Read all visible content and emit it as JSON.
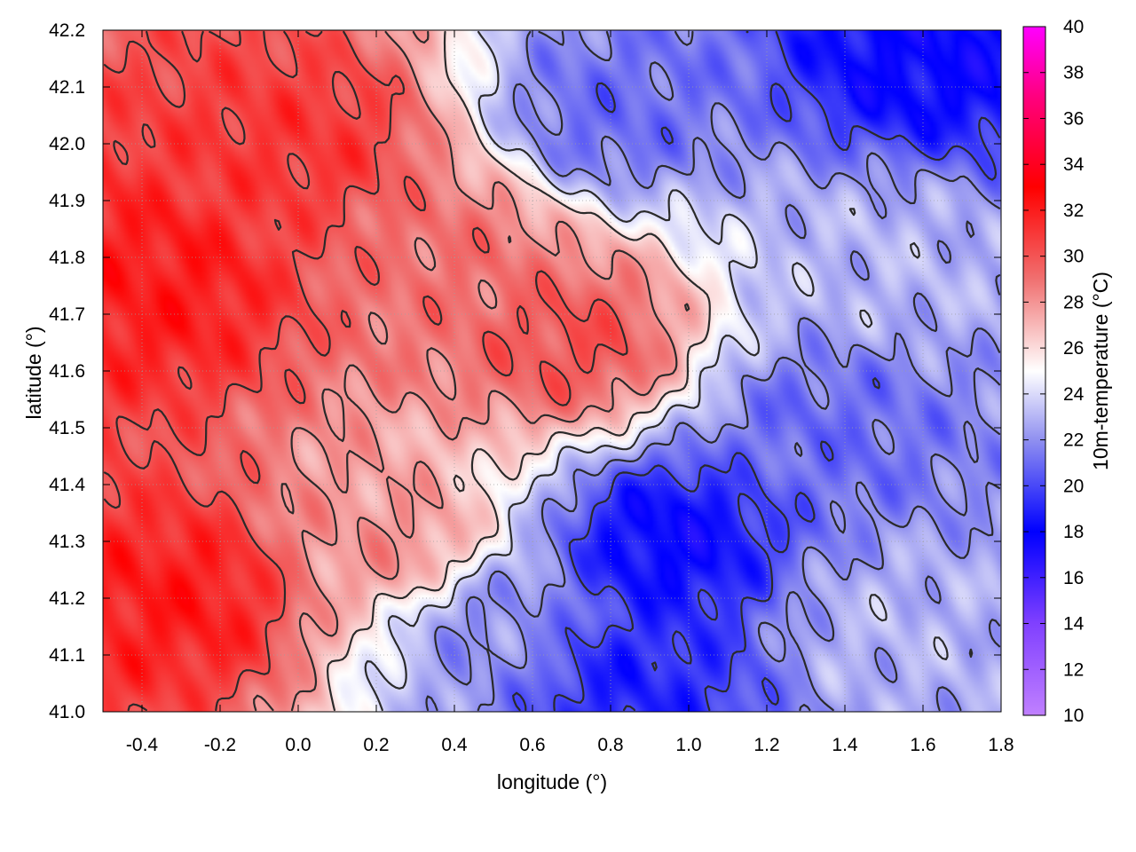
{
  "chart_data": {
    "type": "heatmap",
    "title": "",
    "xlabel": "longitude (°)",
    "ylabel": "latitude (°)",
    "colorbar_label": "10m-temperature (°C)",
    "xlim": [
      -0.5,
      1.8
    ],
    "ylim": [
      41.0,
      42.2
    ],
    "clim": [
      10,
      40
    ],
    "x_ticks": [
      "-0.4",
      "-0.2",
      "0.0",
      "0.2",
      "0.4",
      "0.6",
      "0.8",
      "1.0",
      "1.2",
      "1.4",
      "1.6",
      "1.8"
    ],
    "y_ticks": [
      "41.0",
      "41.1",
      "41.2",
      "41.3",
      "41.4",
      "41.5",
      "41.6",
      "41.7",
      "41.8",
      "41.9",
      "42.0",
      "42.1",
      "42.2"
    ],
    "colorbar_ticks": [
      "10",
      "12",
      "14",
      "16",
      "18",
      "20",
      "22",
      "24",
      "26",
      "28",
      "30",
      "32",
      "34",
      "36",
      "38",
      "40"
    ],
    "colormap": [
      {
        "value": 10,
        "color": "#c080ff"
      },
      {
        "value": 14,
        "color": "#8040ff"
      },
      {
        "value": 18,
        "color": "#0000ff"
      },
      {
        "value": 22,
        "color": "#9090f0"
      },
      {
        "value": 25,
        "color": "#ffffff"
      },
      {
        "value": 29,
        "color": "#f07070"
      },
      {
        "value": 33,
        "color": "#ff0000"
      },
      {
        "value": 37,
        "color": "#ff0080"
      },
      {
        "value": 40,
        "color": "#ff00ff"
      }
    ],
    "grid": true,
    "temperature_regions": [
      {
        "lon": -0.35,
        "lat": 41.75,
        "temp": 32
      },
      {
        "lon": -0.3,
        "lat": 41.2,
        "temp": 32
      },
      {
        "lon": 0.0,
        "lat": 42.0,
        "temp": 31
      },
      {
        "lon": 0.7,
        "lat": 41.65,
        "temp": 30
      },
      {
        "lon": 0.4,
        "lat": 41.8,
        "temp": 29
      },
      {
        "lon": 0.25,
        "lat": 41.3,
        "temp": 28
      },
      {
        "lon": 0.5,
        "lat": 41.15,
        "temp": 22
      },
      {
        "lon": 0.95,
        "lat": 41.3,
        "temp": 18
      },
      {
        "lon": 0.85,
        "lat": 41.05,
        "temp": 19
      },
      {
        "lon": 1.35,
        "lat": 41.5,
        "temp": 21
      },
      {
        "lon": 1.6,
        "lat": 42.15,
        "temp": 18
      },
      {
        "lon": 0.8,
        "lat": 42.05,
        "temp": 21
      },
      {
        "lon": 1.5,
        "lat": 41.15,
        "temp": 23
      },
      {
        "lon": 1.5,
        "lat": 41.8,
        "temp": 23
      }
    ]
  }
}
